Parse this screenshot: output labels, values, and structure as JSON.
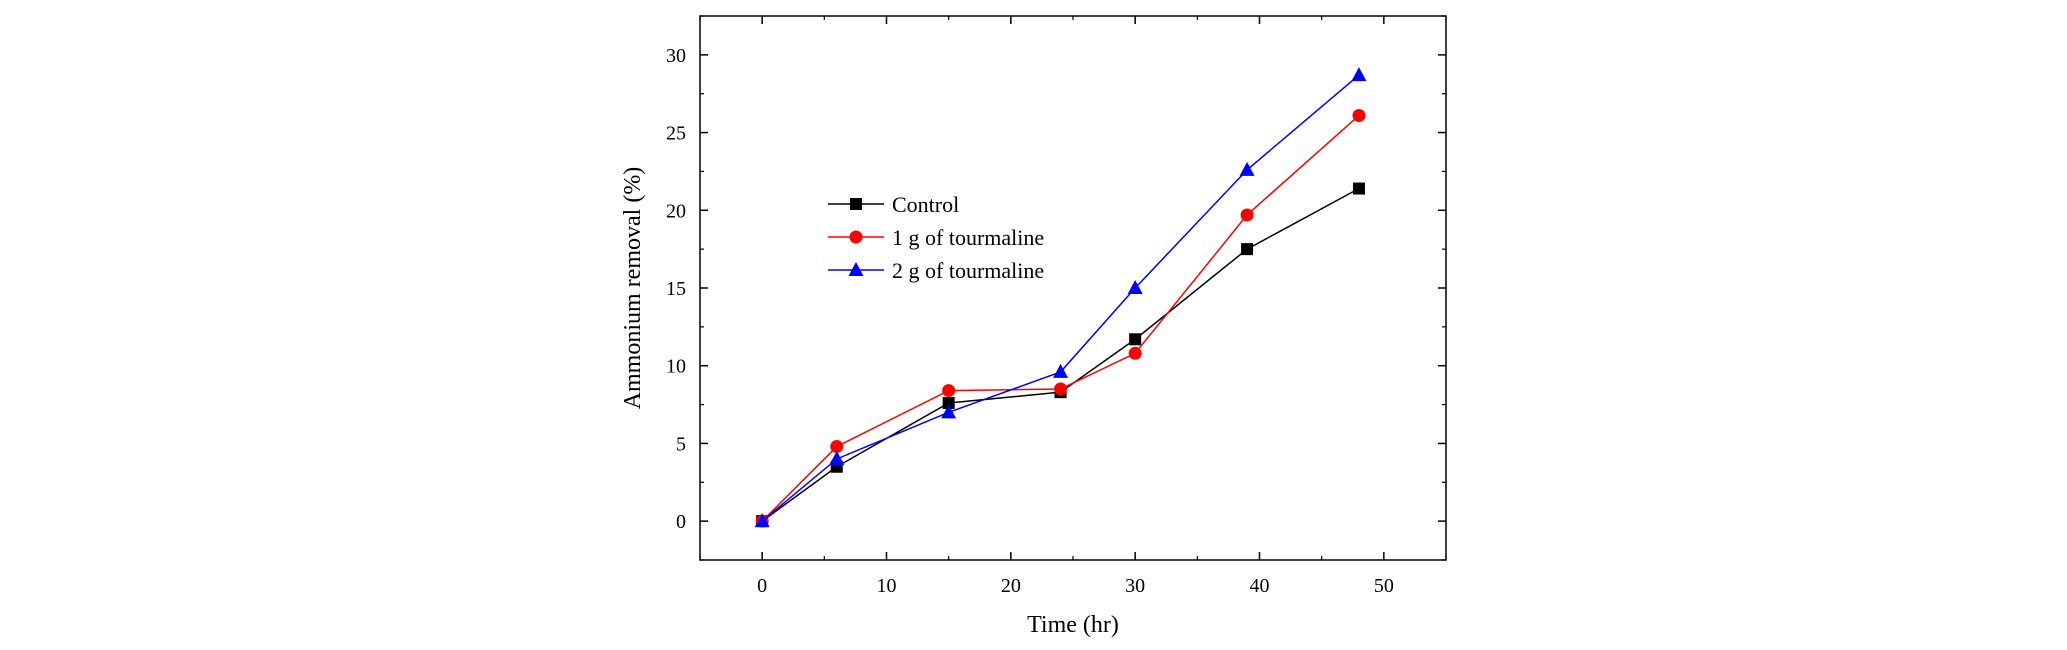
{
  "chart_data": {
    "type": "line",
    "xlabel": "Time (hr)",
    "ylabel": "Ammonium removal (%)",
    "xlim": [
      -5,
      55
    ],
    "ylim": [
      -2.5,
      32.5
    ],
    "xticks": [
      0,
      10,
      20,
      30,
      40,
      50
    ],
    "yticks": [
      0,
      5,
      10,
      15,
      20,
      25,
      30
    ],
    "legend_position": "middle-left",
    "x": [
      0,
      6,
      15,
      24,
      30,
      39,
      48
    ],
    "series": [
      {
        "name": "Control",
        "color": "#000000",
        "marker": "square",
        "values": [
          0,
          3.5,
          7.6,
          8.3,
          11.7,
          17.5,
          21.4
        ]
      },
      {
        "name": "1 g of tourmaline",
        "color": "#ff0000",
        "marker": "circle",
        "values": [
          0,
          4.8,
          8.4,
          8.5,
          10.8,
          19.7,
          26.1
        ]
      },
      {
        "name": "2 g of tourmaline",
        "color": "#0000ff",
        "marker": "triangle",
        "values": [
          0,
          4.0,
          7.0,
          9.6,
          15.0,
          22.6,
          28.7
        ]
      }
    ]
  }
}
